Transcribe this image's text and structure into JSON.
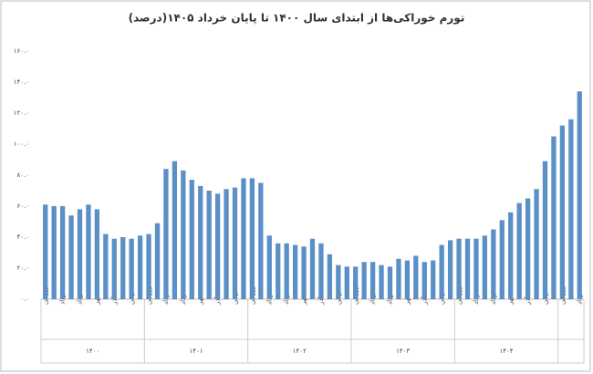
{
  "chart_data": {
    "type": "bar",
    "title": "تورم خوراکی‌ها از ابتدای سال ۱۴۰۰ تا پایان خرداد ۱۴۰۵(درصد)",
    "categories": [
      "فروردین",
      null,
      "خرداد",
      null,
      "مرداد",
      null,
      "مهر",
      null,
      "آذر",
      null,
      "بهمن",
      null,
      "فروردین",
      null,
      "خرداد",
      null,
      "مرداد",
      null,
      "مهر",
      null,
      "آذر",
      null,
      "بهمن",
      null,
      "فروردین",
      null,
      "خرداد",
      null,
      "مرداد",
      null,
      "مهر",
      null,
      "آذر",
      null,
      "بهمن",
      null,
      "فروردین",
      null,
      "خرداد",
      null,
      "مرداد",
      null,
      "مهر",
      null,
      "آذر",
      null,
      "بهمن",
      null,
      "فروردین",
      null,
      "خرداد",
      null,
      "مرداد",
      null,
      "مهر",
      null,
      "آذر",
      null,
      "بهمن",
      null,
      "فروردین",
      null,
      "خرداد"
    ],
    "values": [
      61,
      60,
      60,
      54,
      58,
      61,
      58,
      42,
      39,
      40,
      39,
      41,
      42,
      49,
      84,
      89,
      83,
      77,
      73,
      70,
      68,
      71,
      72,
      78,
      78,
      75,
      41,
      36,
      36,
      35,
      34,
      39,
      36,
      29,
      22,
      21,
      21,
      24,
      24,
      22,
      21,
      26,
      25,
      28,
      24,
      25,
      35,
      38,
      39,
      39,
      39,
      41,
      45,
      51,
      56,
      62,
      65,
      71,
      89,
      105,
      112,
      116,
      134
    ],
    "year_labels": [
      "۱۴۰۰",
      "۱۴۰۱",
      "۱۴۰۲",
      "۱۴۰۳",
      "۱۴۰۴",
      null
    ],
    "color": "#5b8fc7",
    "ylim": [
      0,
      160
    ],
    "yticks": [
      {
        "value": 0,
        "label": "۰.۰"
      },
      {
        "value": 20,
        "label": "۲۰.۰"
      },
      {
        "value": 40,
        "label": "۴۰.۰"
      },
      {
        "value": 60,
        "label": "۶۰.۰"
      },
      {
        "value": 80,
        "label": "۸۰.۰"
      },
      {
        "value": 100,
        "label": "۱۰۰.۰"
      },
      {
        "value": 120,
        "label": "۱۲۰.۰"
      },
      {
        "value": 140,
        "label": "۱۴۰.۰"
      },
      {
        "value": 160,
        "label": "۱۶۰.۰"
      }
    ],
    "grid": false
  }
}
